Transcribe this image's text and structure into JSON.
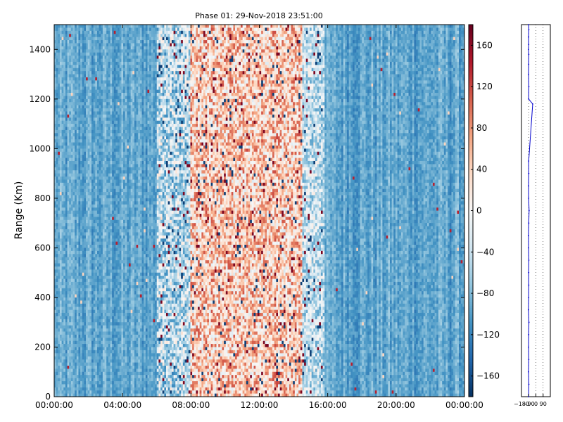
{
  "chart_data": [
    {
      "type": "heatmap",
      "title": "Phase 01: 29-Nov-2018 23:51:00",
      "xlabel": "",
      "ylabel": "Range (Km)",
      "x_ticks": [
        "00:00:00",
        "04:00:00",
        "08:00:00",
        "12:00:00",
        "16:00:00",
        "20:00:00",
        "00:00:00"
      ],
      "y_ticks": [
        0,
        200,
        400,
        600,
        800,
        1000,
        1200,
        1400
      ],
      "ylim": [
        0,
        1500
      ],
      "xlim_hours": [
        0,
        24
      ],
      "colormap": "RdBu_r",
      "value_range": [
        -180,
        180
      ],
      "pattern": {
        "baseline_value": -95,
        "disturbed_band_hours": [
          6.0,
          15.8
        ],
        "disturbed_core_hours": [
          8.0,
          14.5
        ],
        "disturbed_mean_value": 45,
        "transition_values": {
          "early": -45,
          "late": -40
        }
      },
      "colorbar": {
        "ticks": [
          -160,
          -120,
          -80,
          -40,
          0,
          40,
          80,
          120,
          160
        ]
      }
    },
    {
      "type": "line",
      "title": "",
      "xlabel": "",
      "ylabel": "",
      "xlim": [
        -180,
        180
      ],
      "x_ticks": [
        "−180",
        "−90",
        "0",
        "90"
      ],
      "ylim": [
        0,
        1500
      ],
      "grid": true,
      "series_color": "#0000cc",
      "series": [
        {
          "x": [
            -90,
            -88,
            -92,
            -89,
            -91,
            -90,
            -87,
            -93,
            -90,
            -89,
            -90,
            -88,
            -91,
            -92,
            -89,
            -85,
            -90,
            -91,
            -89,
            -90,
            -40,
            -90,
            -88,
            -91,
            -90,
            -89,
            -92,
            -90,
            -91,
            -88,
            -90
          ],
          "y": [
            0,
            50,
            100,
            150,
            200,
            250,
            300,
            350,
            400,
            450,
            500,
            550,
            600,
            650,
            700,
            750,
            800,
            850,
            900,
            950,
            1180,
            1200,
            1250,
            1300,
            1340,
            1380,
            1400,
            1420,
            1450,
            1480,
            1500
          ]
        }
      ]
    }
  ]
}
